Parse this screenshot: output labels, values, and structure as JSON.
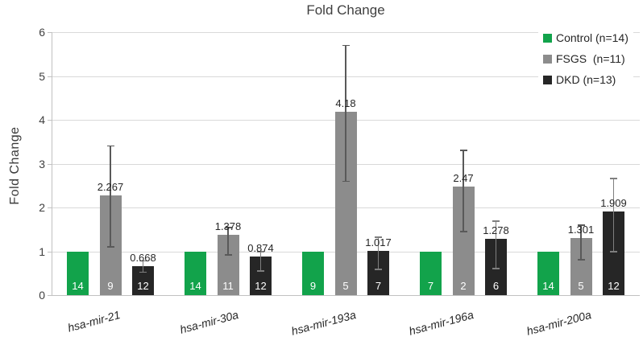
{
  "chart_data": {
    "type": "bar",
    "title": "Fold Change",
    "ylabel": "Fold Change",
    "xlabel": "",
    "ylim": [
      0,
      6
    ],
    "yticks": [
      0,
      1,
      2,
      3,
      4,
      5,
      6
    ],
    "grid": true,
    "legend_position": "top-right",
    "categories": [
      "hsa-mir-21",
      "hsa-mir-30a",
      "hsa-mir-193a",
      "hsa-mir-196a",
      "hsa-mir-200a"
    ],
    "series": [
      {
        "name": "Control (n=14)",
        "key": "control",
        "color": "#12A34B",
        "values": [
          1,
          1,
          1,
          1,
          1
        ],
        "bar_counts": [
          14,
          14,
          9,
          7,
          14
        ],
        "value_labels": null,
        "error_lo": null,
        "error_hi": null,
        "error_color": null
      },
      {
        "name": "FSGS  (n=11)",
        "key": "fsgs",
        "color": "#8C8C8C",
        "values": [
          2.267,
          1.378,
          4.18,
          2.47,
          1.301
        ],
        "bar_counts": [
          9,
          11,
          5,
          2,
          5
        ],
        "value_labels": [
          "2.267",
          "1.378",
          "4.18",
          "2.47",
          "1.301"
        ],
        "error_lo": [
          1.1,
          0.92,
          2.6,
          1.45,
          0.81
        ],
        "error_hi": [
          3.4,
          1.54,
          5.7,
          3.3,
          1.6
        ],
        "error_color": "#595959"
      },
      {
        "name": "DKD (n=13)",
        "key": "dkd",
        "color": "#262626",
        "values": [
          0.668,
          0.874,
          1.017,
          1.278,
          1.909
        ],
        "bar_counts": [
          12,
          12,
          7,
          6,
          12
        ],
        "value_labels": [
          "0.668",
          "0.874",
          "1.017",
          "1.278",
          "1.909"
        ],
        "error_lo": [
          0.52,
          0.55,
          0.59,
          0.61,
          0.99
        ],
        "error_hi": [
          0.78,
          0.99,
          1.32,
          1.69,
          2.66
        ],
        "error_color": "#7F7F7F"
      }
    ]
  }
}
